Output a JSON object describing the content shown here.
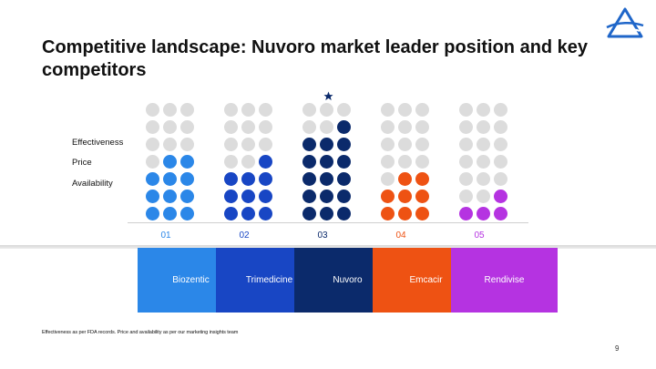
{
  "slide": {
    "title": "Competitive landscape: Nuvoro market leader position and key competitors",
    "page_number": "9",
    "footnote": "Effectiveness as per FDA records. Price and availability as per our marketing insights team"
  },
  "row_labels": [
    "Effectiveness",
    "Price",
    "Availability"
  ],
  "colors": {
    "inactive_dot": "#dcdcdc",
    "logo": "#1f66c9"
  },
  "competitors": [
    {
      "number": "01",
      "name": "Biozentic",
      "color": "#2b87e8",
      "filled_dots": 11
    },
    {
      "number": "02",
      "name": "Trimedicine",
      "color": "#1846c4",
      "filled_dots": 10
    },
    {
      "number": "03",
      "name": "Nuvoro",
      "color": "#0b2a6b",
      "filled_dots": 16,
      "leader": true
    },
    {
      "number": "04",
      "name": "Emcacir",
      "color": "#ee5213",
      "filled_dots": 8
    },
    {
      "number": "05",
      "name": "Rendivise",
      "color": "#b533e1",
      "filled_dots": 4
    }
  ],
  "grid": {
    "rows": 7,
    "cols": 3
  }
}
